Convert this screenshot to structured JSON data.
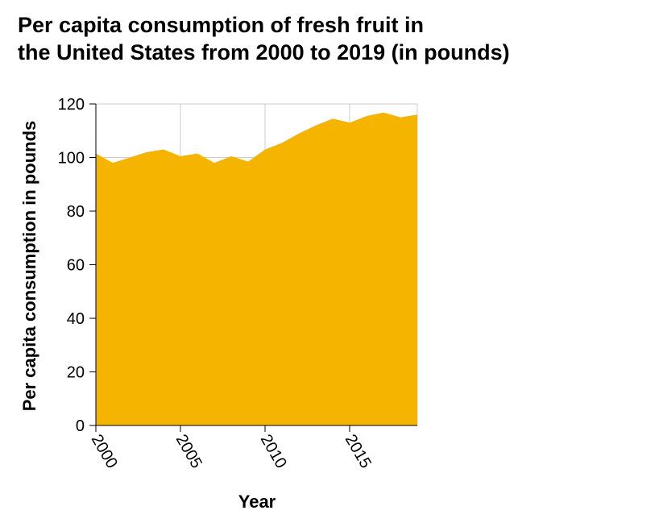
{
  "chart_data": {
    "type": "area",
    "title_lines": [
      "Per capita consumption of fresh fruit in",
      "the United States from 2000 to 2019 (in pounds)"
    ],
    "xlabel": "Year",
    "ylabel": "Per capita consumption in pounds",
    "x": [
      2000,
      2001,
      2002,
      2003,
      2004,
      2005,
      2006,
      2007,
      2008,
      2009,
      2010,
      2011,
      2012,
      2013,
      2014,
      2015,
      2016,
      2017,
      2018,
      2019
    ],
    "values": [
      101.5,
      98,
      100,
      102,
      103,
      100.5,
      101.5,
      98,
      100.5,
      98.5,
      103,
      105.5,
      109,
      112,
      114.5,
      113,
      115.5,
      116.8,
      115,
      116
    ],
    "xlim": [
      2000,
      2019
    ],
    "ylim": [
      0,
      120
    ],
    "xticks": [
      2000,
      2005,
      2010,
      2015
    ],
    "yticks": [
      0,
      20,
      40,
      60,
      80,
      100,
      120
    ],
    "grid": true,
    "fill_color": "#f5b400",
    "grid_color": "#cccccc"
  }
}
